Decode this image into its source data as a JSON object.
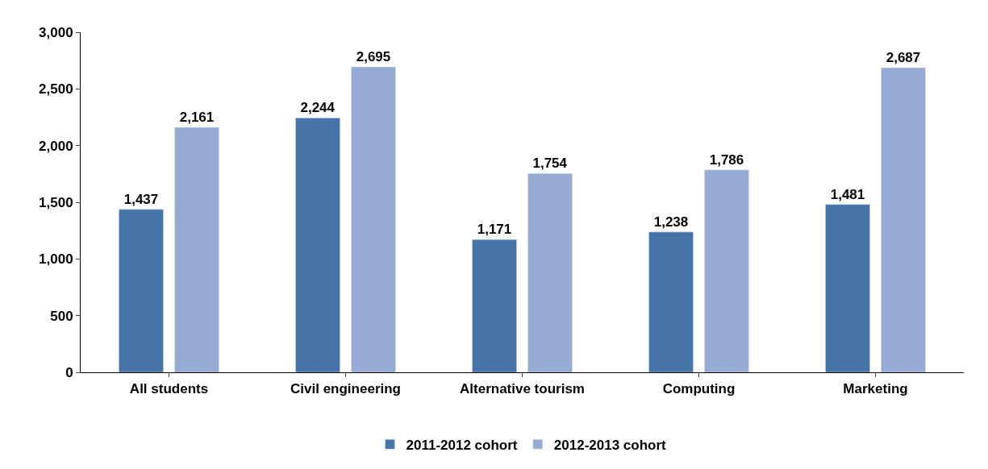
{
  "chart_data": {
    "type": "bar",
    "categories": [
      "All students",
      "Civil engineering",
      "Alternative tourism",
      "Computing",
      "Marketing"
    ],
    "series": [
      {
        "name": "2011-2012 cohort",
        "color": "#4673a8",
        "values": [
          1437,
          2244,
          1171,
          1238,
          1481
        ],
        "value_labels": [
          "1,437",
          "2,244",
          "1,171",
          "1,238",
          "1,481"
        ]
      },
      {
        "name": "2012-2013 cohort",
        "color": "#95abd3",
        "values": [
          2161,
          2695,
          1754,
          1786,
          2687
        ],
        "value_labels": [
          "2,161",
          "2,695",
          "1,754",
          "1,786",
          "2,687"
        ]
      }
    ],
    "ylim": [
      0,
      3000
    ],
    "yticks": [
      {
        "value": 0,
        "label": "0"
      },
      {
        "value": 500,
        "label": "500"
      },
      {
        "value": 1000,
        "label": "1,000"
      },
      {
        "value": 1500,
        "label": "1,500"
      },
      {
        "value": 2000,
        "label": "2,000"
      },
      {
        "value": 2500,
        "label": "2,500"
      },
      {
        "value": 3000,
        "label": "3,000"
      }
    ],
    "legend": "bottom"
  }
}
